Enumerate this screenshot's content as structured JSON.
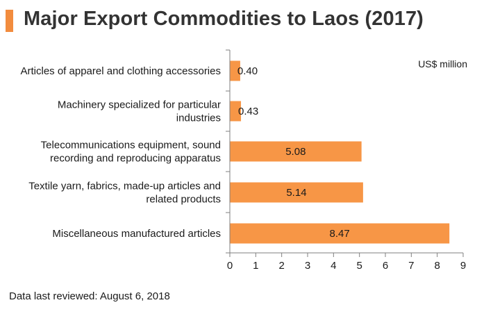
{
  "title": "Major Export Commodities to Laos (2017)",
  "colors": {
    "accent": "#F28C3E",
    "bar": "#F79646",
    "axis": "#7f7f7f"
  },
  "unit_label": "US$ million",
  "footnote": "Data last reviewed: August 6, 2018",
  "chart_data": {
    "type": "bar",
    "orientation": "horizontal",
    "categories": [
      [
        "Articles of apparel and clothing accessories"
      ],
      [
        "Machinery specialized for particular",
        "industries"
      ],
      [
        "Telecommunications equipment, sound",
        "recording and reproducing apparatus"
      ],
      [
        "Textile yarn, fabrics, made-up articles and",
        "related products"
      ],
      [
        "Miscellaneous manufactured articles"
      ]
    ],
    "values": [
      0.4,
      0.43,
      5.08,
      5.14,
      8.47
    ],
    "value_labels": [
      "0.40",
      "0.43",
      "5.08",
      "5.14",
      "8.47"
    ],
    "xlim": [
      0,
      9
    ],
    "xticks": [
      0,
      1,
      2,
      3,
      4,
      5,
      6,
      7,
      8,
      9
    ],
    "grid": false,
    "unit": "US$ million"
  }
}
